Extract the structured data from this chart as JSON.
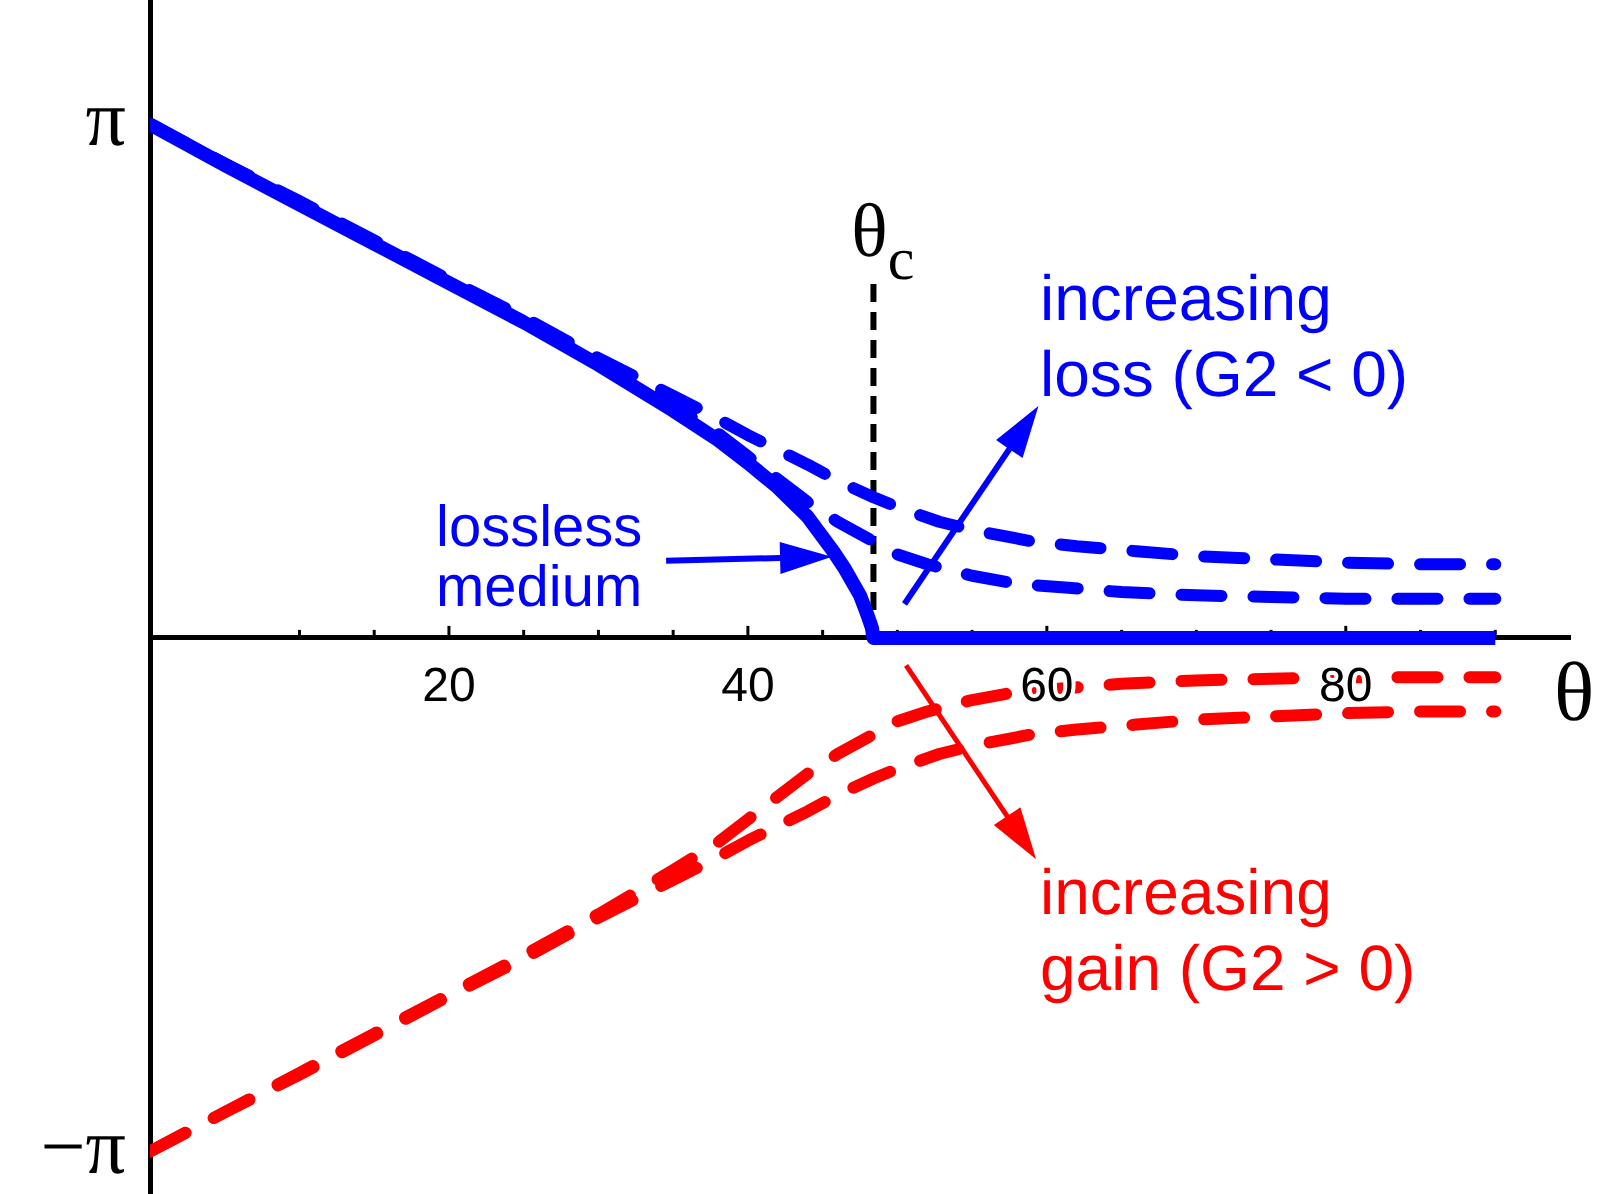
{
  "chart_data": {
    "type": "line",
    "xlabel": "θ",
    "xlim": [
      0,
      95
    ],
    "ylim": [
      -3.4,
      3.9
    ],
    "xticks": [
      {
        "value": 10,
        "label": null
      },
      {
        "value": 15,
        "label": null
      },
      20,
      {
        "value": 25,
        "label": null
      },
      {
        "value": 30,
        "label": null
      },
      {
        "value": 35,
        "label": null
      },
      40,
      {
        "value": 45,
        "label": null
      },
      {
        "value": 50,
        "label": null
      },
      {
        "value": 55,
        "label": null
      },
      60,
      {
        "value": 65,
        "label": null
      },
      {
        "value": 70,
        "label": null
      },
      {
        "value": 75,
        "label": null
      },
      80,
      {
        "value": 85,
        "label": null
      },
      {
        "value": 90,
        "label": null
      }
    ],
    "yticks": [
      {
        "value": 3.14159,
        "label": "π"
      },
      {
        "value": -3.14159,
        "label": "−π"
      }
    ],
    "series": [
      {
        "color": "#0000ff",
        "line_style": "solid",
        "x": [
          0,
          5,
          10,
          15,
          20,
          25,
          30,
          35,
          38,
          40,
          42,
          44,
          45.7,
          46.5,
          47.5,
          48,
          48.3,
          48.4,
          50,
          60,
          70,
          80,
          90
        ],
        "values": [
          3.14,
          2.89,
          2.65,
          2.41,
          2.17,
          1.93,
          1.67,
          1.39,
          1.21,
          1.07,
          0.92,
          0.74,
          0.53,
          0.42,
          0.26,
          0.14,
          0.06,
          0,
          0,
          0,
          0,
          0,
          0
        ]
      },
      {
        "color": "#0000ff",
        "line_style": "dashed",
        "x": [
          0,
          5,
          10,
          15,
          20,
          25,
          30,
          35,
          38,
          40,
          42,
          44,
          46,
          48.4,
          50,
          52.8,
          55,
          59,
          62,
          66,
          70,
          75,
          80,
          85,
          90
        ],
        "values": [
          3.14,
          2.9,
          2.67,
          2.43,
          2.19,
          1.96,
          1.71,
          1.48,
          1.34,
          1.24,
          1.15,
          1.06,
          0.96,
          0.86,
          0.8,
          0.71,
          0.66,
          0.59,
          0.56,
          0.53,
          0.5,
          0.48,
          0.46,
          0.45,
          0.45
        ]
      },
      {
        "color": "#0000ff",
        "line_style": "dashed",
        "x": [
          0,
          5,
          10,
          15,
          20,
          25,
          30,
          35,
          38,
          40,
          42,
          44,
          46,
          48.4,
          50,
          52,
          55,
          58,
          61,
          65,
          70,
          75,
          80,
          85,
          90
        ],
        "values": [
          3.14,
          2.9,
          2.66,
          2.42,
          2.18,
          1.94,
          1.69,
          1.42,
          1.25,
          1.11,
          0.97,
          0.83,
          0.71,
          0.59,
          0.51,
          0.45,
          0.38,
          0.33,
          0.31,
          0.28,
          0.26,
          0.25,
          0.24,
          0.24,
          0.24
        ]
      },
      {
        "color": "#ff0000",
        "line_style": "dashed",
        "x": [
          0,
          5,
          10,
          15,
          20,
          25,
          30,
          35,
          38,
          40,
          42,
          44,
          46,
          48.4,
          50,
          52,
          55,
          58,
          61,
          65,
          70,
          75,
          80,
          85,
          90
        ],
        "values": [
          -3.14,
          -2.9,
          -2.66,
          -2.42,
          -2.18,
          -1.94,
          -1.69,
          -1.42,
          -1.25,
          -1.11,
          -0.97,
          -0.83,
          -0.71,
          -0.59,
          -0.51,
          -0.45,
          -0.38,
          -0.33,
          -0.31,
          -0.28,
          -0.26,
          -0.25,
          -0.24,
          -0.24,
          -0.24
        ]
      },
      {
        "color": "#ff0000",
        "line_style": "dashed",
        "x": [
          0,
          5,
          10,
          15,
          20,
          25,
          30,
          35,
          38,
          40,
          42,
          44,
          46,
          48.4,
          50,
          52.8,
          55,
          59,
          62,
          66,
          70,
          75,
          80,
          85,
          90
        ],
        "values": [
          -3.14,
          -2.9,
          -2.67,
          -2.43,
          -2.19,
          -1.96,
          -1.71,
          -1.48,
          -1.34,
          -1.24,
          -1.15,
          -1.06,
          -0.96,
          -0.86,
          -0.8,
          -0.71,
          -0.66,
          -0.59,
          -0.56,
          -0.53,
          -0.5,
          -0.48,
          -0.46,
          -0.45,
          -0.45
        ]
      }
    ],
    "ref_lines": [
      {
        "axis": "x",
        "value": 48.4,
        "label": "θ$_{c}$",
        "color": "#000000",
        "line_style": "dashed"
      }
    ],
    "annotations": [
      "lossless\nmedium",
      "increasing\nloss (G2 < 0)",
      "increasing\ngain (G2 > 0)"
    ]
  }
}
